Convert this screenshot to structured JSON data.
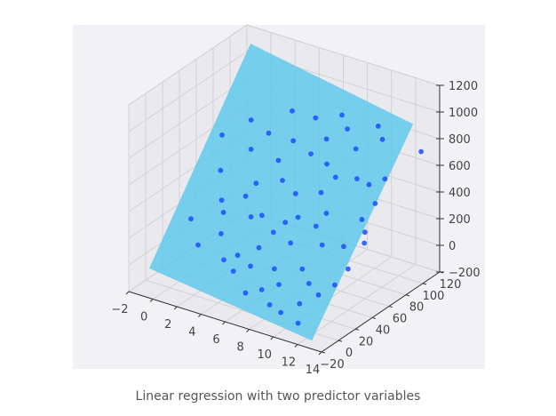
{
  "caption": "Linear regression with two predictor variables",
  "chart_data": {
    "type": "scatter3d",
    "x_ticks": [
      "−2",
      "0",
      "2",
      "4",
      "6",
      "8",
      "10",
      "12",
      "14"
    ],
    "y_ticks": [
      "−20",
      "0",
      "20",
      "40",
      "60",
      "80",
      "100",
      "120"
    ],
    "z_ticks": [
      "−200",
      "0",
      "200",
      "400",
      "600",
      "800",
      "1000",
      "1200"
    ],
    "xlim": [
      -2,
      14
    ],
    "ylim": [
      -20,
      120
    ],
    "zlim": [
      -200,
      1200
    ],
    "grid": true,
    "surface": {
      "type": "regression-plane",
      "color": "#5bc8ea",
      "corners": [
        {
          "x": -1,
          "y": -10,
          "z": -40
        },
        {
          "x": -1,
          "y": 110,
          "z": 1130
        },
        {
          "x": 12.5,
          "y": 110,
          "z": 910
        },
        {
          "x": 12.5,
          "y": -10,
          "z": -200
        }
      ]
    },
    "points": {
      "color": "#1a4fff",
      "xy": [
        [
          1.5,
          75
        ],
        [
          3.1,
          73
        ],
        [
          0,
          62
        ],
        [
          2.4,
          62
        ],
        [
          1,
          46
        ],
        [
          3.8,
          48
        ],
        [
          2,
          33
        ],
        [
          4.5,
          32
        ],
        [
          0.5,
          18
        ],
        [
          3,
          18
        ],
        [
          1.8,
          8
        ],
        [
          4,
          7
        ],
        [
          6,
          10
        ],
        [
          5,
          4
        ],
        [
          7.5,
          2
        ],
        [
          8.5,
          -3
        ],
        [
          9.5,
          -4
        ],
        [
          11,
          -5
        ],
        [
          6.5,
          -3
        ],
        [
          4.8,
          12
        ],
        [
          5.2,
          35
        ],
        [
          6.5,
          30
        ],
        [
          8,
          29
        ],
        [
          9.6,
          20
        ],
        [
          10.5,
          15
        ],
        [
          11.5,
          12
        ],
        [
          7.7,
          14
        ],
        [
          12.3,
          20
        ],
        [
          5.5,
          55
        ],
        [
          6.8,
          52
        ],
        [
          7.7,
          42
        ],
        [
          8.5,
          58
        ],
        [
          9.2,
          42
        ],
        [
          10.2,
          35
        ],
        [
          11.7,
          39
        ],
        [
          12.7,
          50
        ],
        [
          4,
          88
        ],
        [
          5,
          75
        ],
        [
          6.6,
          73
        ],
        [
          7.2,
          83
        ],
        [
          8.3,
          92
        ],
        [
          9.5,
          85
        ],
        [
          10.5,
          72
        ],
        [
          11.5,
          72
        ],
        [
          12.4,
          78
        ],
        [
          12.5,
          65
        ],
        [
          12.1,
          55
        ],
        [
          13,
          45
        ],
        [
          14,
          98
        ],
        [
          11,
          95
        ],
        [
          10.3,
          100
        ],
        [
          7.5,
          97
        ],
        [
          5.8,
          90
        ],
        [
          4.6,
          63
        ],
        [
          8,
          72
        ],
        [
          9,
          68
        ],
        [
          2.5,
          28
        ],
        [
          6,
          20
        ],
        [
          8.5,
          8
        ],
        [
          10.5,
          4
        ],
        [
          7,
          37
        ],
        [
          12.7,
          30
        ],
        [
          3.5,
          40
        ],
        [
          9.5,
          50
        ]
      ]
    }
  }
}
